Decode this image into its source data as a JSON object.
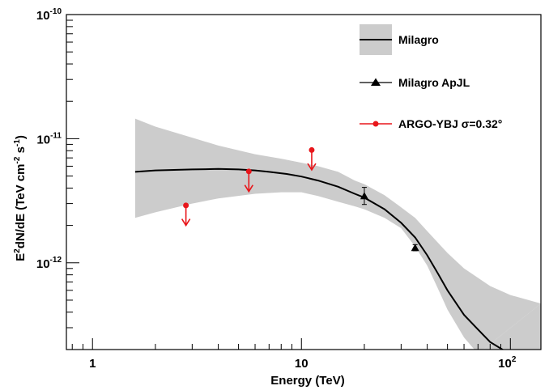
{
  "chart_data": {
    "type": "scatter",
    "xlabel": "Energy (TeV)",
    "ylabel": {
      "base": "E",
      "sup1": "2",
      "mid": "dN/dE (TeV cm",
      "sup2": "-2",
      "mid2": " s",
      "sup3": "-1",
      "end": ")"
    },
    "x_scale": "log",
    "y_scale": "log",
    "xlim": [
      0.75,
      140
    ],
    "ylim": [
      2e-13,
      1e-10
    ],
    "x_ticks": [
      {
        "value": 1,
        "base": "1",
        "exp": ""
      },
      {
        "value": 10,
        "base": "10",
        "exp": ""
      },
      {
        "value": 100,
        "base": "10",
        "exp": "2"
      }
    ],
    "y_ticks": [
      {
        "value": 1e-12,
        "base": "10",
        "exp": "-12"
      },
      {
        "value": 1e-11,
        "base": "10",
        "exp": "-11"
      },
      {
        "value": 1e-10,
        "base": "10",
        "exp": "-10"
      }
    ],
    "grid": false,
    "legend_position": "top-right",
    "legend": [
      {
        "label": "Milagro",
        "kind": "band-line"
      },
      {
        "label": "Milagro ApJL",
        "kind": "triangle"
      },
      {
        "label": "ARGO-YBJ σ=0.32°",
        "kind": "red-point"
      }
    ],
    "series": [
      {
        "name": "Milagro",
        "kind": "line",
        "color": "#000000",
        "points": [
          [
            1.6,
            5.4e-12
          ],
          [
            2,
            5.55e-12
          ],
          [
            3,
            5.65e-12
          ],
          [
            4,
            5.7e-12
          ],
          [
            5,
            5.65e-12
          ],
          [
            6,
            5.55e-12
          ],
          [
            7,
            5.4e-12
          ],
          [
            8.5,
            5.2e-12
          ],
          [
            10,
            4.95e-12
          ],
          [
            12,
            4.6e-12
          ],
          [
            15,
            4.1e-12
          ],
          [
            18,
            3.6e-12
          ],
          [
            20,
            3.35e-12
          ],
          [
            25,
            2.7e-12
          ],
          [
            30,
            2.1e-12
          ],
          [
            35,
            1.6e-12
          ],
          [
            40,
            1.15e-12
          ],
          [
            45,
            8.2e-13
          ],
          [
            50,
            6e-13
          ],
          [
            60,
            3.8e-13
          ],
          [
            70,
            2.9e-13
          ],
          [
            80,
            2.3e-13
          ],
          [
            94,
            1.95e-13
          ]
        ]
      },
      {
        "name": "Milagro",
        "kind": "band",
        "color": "#cccccc",
        "upper": [
          [
            1.6,
            1.45e-11
          ],
          [
            2,
            1.25e-11
          ],
          [
            3,
            1.02e-11
          ],
          [
            4,
            8.8e-12
          ],
          [
            6,
            7.5e-12
          ],
          [
            8,
            6.9e-12
          ],
          [
            10,
            6.4e-12
          ],
          [
            12,
            6e-12
          ],
          [
            15,
            5.4e-12
          ],
          [
            18,
            4.6e-12
          ],
          [
            20,
            4.3e-12
          ],
          [
            25,
            3.5e-12
          ],
          [
            30,
            2.8e-12
          ],
          [
            35,
            2.3e-12
          ],
          [
            40,
            1.8e-12
          ],
          [
            50,
            1.2e-12
          ],
          [
            60,
            9e-13
          ],
          [
            80,
            6.5e-13
          ],
          [
            100,
            5.5e-13
          ],
          [
            140,
            4.7e-13
          ]
        ],
        "lower": [
          [
            1.6,
            2.3e-12
          ],
          [
            2,
            2.55e-12
          ],
          [
            3,
            3e-12
          ],
          [
            4,
            3.3e-12
          ],
          [
            6,
            3.6e-12
          ],
          [
            8,
            3.7e-12
          ],
          [
            10,
            3.7e-12
          ],
          [
            12,
            3.45e-12
          ],
          [
            15,
            3.1e-12
          ],
          [
            18,
            2.85e-12
          ],
          [
            20,
            2.7e-12
          ],
          [
            25,
            2.3e-12
          ],
          [
            30,
            1.9e-12
          ],
          [
            35,
            1.35e-12
          ],
          [
            40,
            9.5e-13
          ],
          [
            45,
            6.2e-13
          ],
          [
            50,
            4.2e-13
          ],
          [
            60,
            2.5e-13
          ],
          [
            70,
            1.85e-13
          ]
        ]
      },
      {
        "name": "Milagro ApJL",
        "kind": "triangle",
        "color": "#000000",
        "points": [
          {
            "x": 20,
            "y": 3.45e-12,
            "err_lo": 2.95e-12,
            "err_hi": 4.05e-12
          },
          {
            "x": 35,
            "y": 1.32e-12,
            "err_lo": 1.25e-12,
            "err_hi": 1.4e-12
          }
        ]
      },
      {
        "name": "ARGO-YBJ σ=0.32°",
        "kind": "upper-limit",
        "color": "#e8161b",
        "points": [
          {
            "x": 2.8,
            "y": 2.9e-12,
            "arrow_to": 2e-12
          },
          {
            "x": 5.6,
            "y": 5.45e-12,
            "arrow_to": 3.75e-12
          },
          {
            "x": 11.2,
            "y": 8.1e-12,
            "arrow_to": 5.6e-12
          }
        ]
      }
    ]
  }
}
